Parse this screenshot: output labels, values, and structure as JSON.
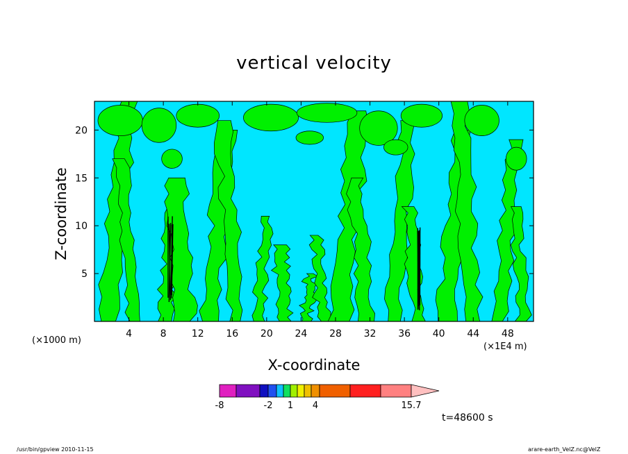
{
  "chart_data": {
    "type": "heatmap",
    "title": "vertical velocity",
    "xlabel": "X-coordinate",
    "ylabel": "Z-coordinate",
    "x_unit_left": "(×1000 m)",
    "x_unit_right": "(×1E4 m)",
    "xlim": [
      0,
      51
    ],
    "ylim": [
      0,
      23
    ],
    "x_ticks": [
      4,
      8,
      12,
      16,
      20,
      24,
      28,
      32,
      36,
      40,
      44,
      48
    ],
    "y_ticks": [
      5,
      10,
      15,
      20
    ],
    "x_tick_labels": [
      "4",
      "8",
      "12",
      "16",
      "20",
      "24",
      "28",
      "32",
      "36",
      "40",
      "44",
      "48"
    ],
    "y_tick_labels": [
      "5",
      "10",
      "15",
      "20"
    ],
    "colorbar": {
      "levels": [
        -8,
        -6,
        -4,
        -3,
        -2,
        -1,
        0,
        0.5,
        1,
        2,
        3,
        4,
        8,
        12,
        15.7
      ],
      "colors": [
        "#e020c0",
        "#8010c0",
        "#1010c0",
        "#2050f0",
        "#10c0ff",
        "#10e060",
        "#a0f000",
        "#f0f000",
        "#f0c000",
        "#f09000",
        "#f06000",
        "#ff2020",
        "#ff8080",
        "#ffc0c0"
      ],
      "tick_labels": [
        "-8",
        "-2",
        "1",
        "4",
        "15.7"
      ]
    },
    "dominant_colors": {
      "negative": "#00e6ff",
      "positive": "#00f000"
    },
    "grid": false,
    "legend": "bottom"
  },
  "annotation": {
    "time": "t=48600 s"
  },
  "footer": {
    "left": "/usr/bin/gpview  2010-11-15",
    "right": "arare-earth_VelZ.nc@VelZ"
  }
}
